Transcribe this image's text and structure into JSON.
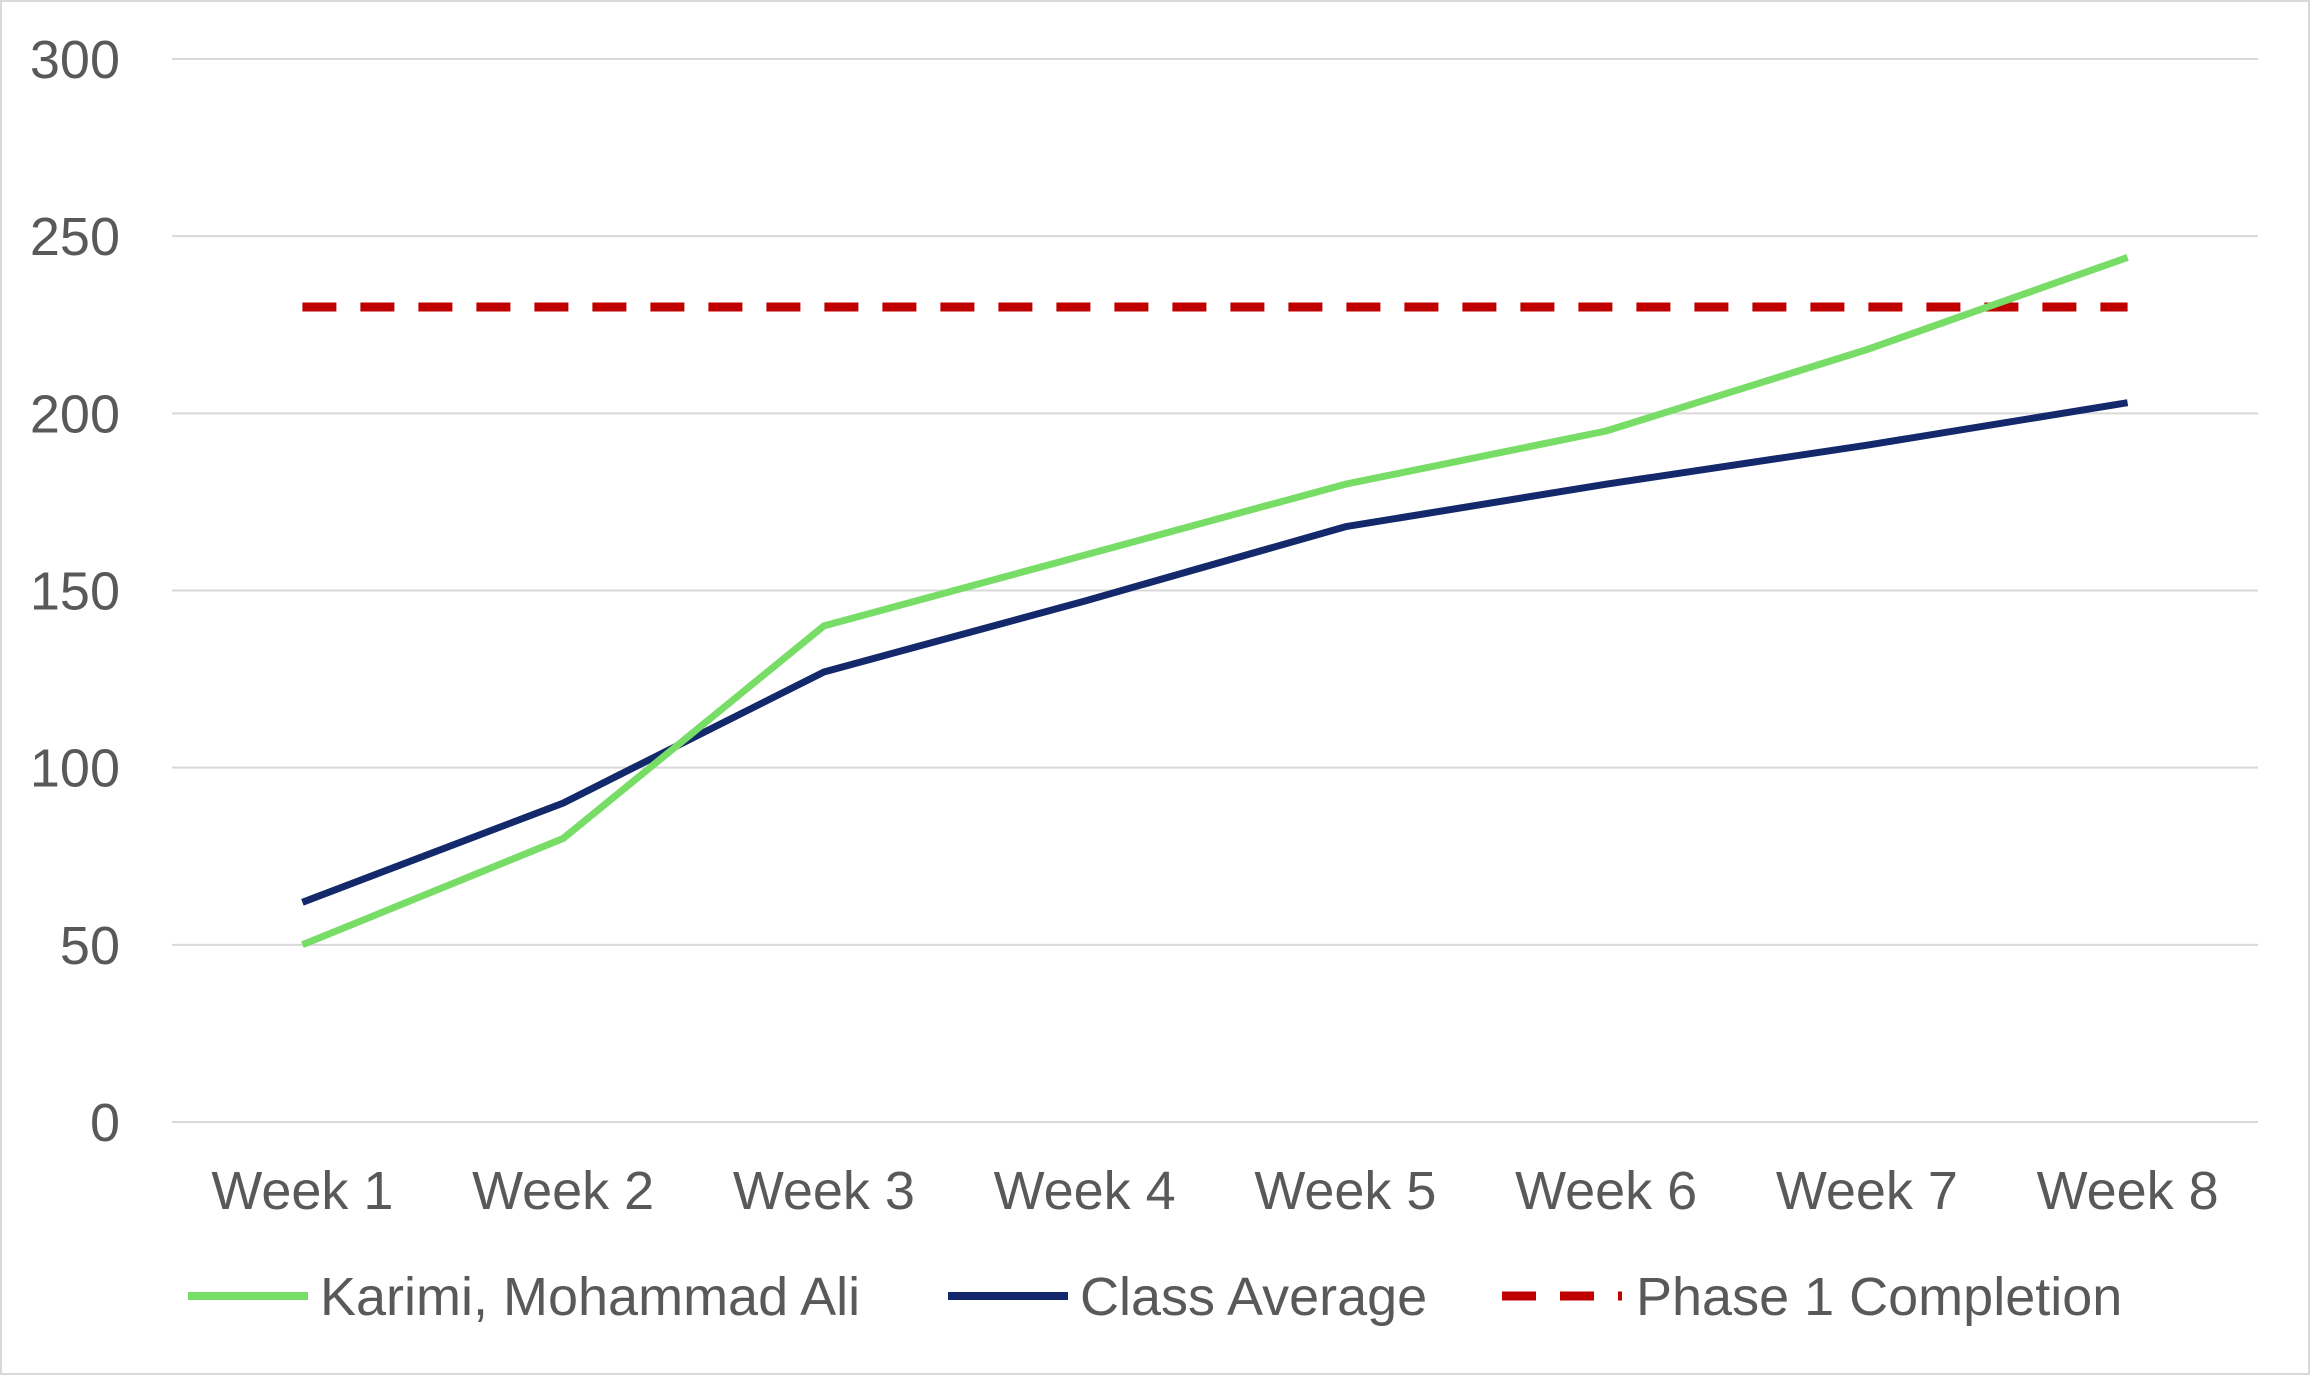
{
  "chart_data": {
    "type": "line",
    "title": "",
    "xlabel": "",
    "ylabel": "",
    "categories": [
      "Week 1",
      "Week 2",
      "Week 3",
      "Week 4",
      "Week 5",
      "Week 6",
      "Week 7",
      "Week 8"
    ],
    "ylim": [
      0,
      300
    ],
    "yticks": [
      "0",
      "50",
      "100",
      "150",
      "200",
      "250",
      "300"
    ],
    "grid": true,
    "legend": "bottom",
    "series": [
      {
        "name": "Karimi, Mohammad Ali",
        "color": "#77dd66",
        "style": "solid",
        "values": [
          50,
          80,
          140,
          160,
          180,
          195,
          218,
          244
        ]
      },
      {
        "name": "Class Average",
        "color": "#13296b",
        "style": "solid",
        "values": [
          62,
          90,
          127,
          147,
          168,
          180,
          191,
          203
        ]
      },
      {
        "name": "Phase 1 Completion",
        "color": "#c00000",
        "style": "dashed",
        "values": [
          230,
          230,
          230,
          230,
          230,
          230,
          230,
          230
        ]
      }
    ]
  }
}
